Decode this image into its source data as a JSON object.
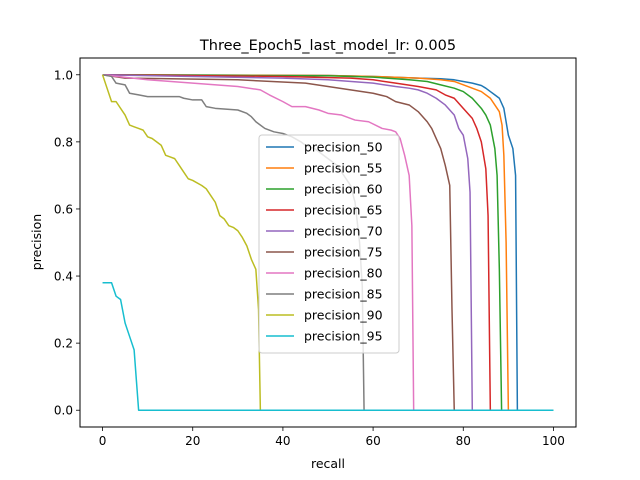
{
  "chart_data": {
    "type": "line",
    "title": "Three_Epoch5_last_model_lr: 0.005",
    "xlabel": "recall",
    "ylabel": "precision",
    "xlim": [
      -5,
      105
    ],
    "ylim": [
      -0.05,
      1.05
    ],
    "xticks": [
      0,
      20,
      40,
      60,
      80,
      100
    ],
    "yticks": [
      0.0,
      0.2,
      0.4,
      0.6,
      0.8,
      1.0
    ],
    "xtick_labels": [
      "0",
      "20",
      "40",
      "60",
      "80",
      "100"
    ],
    "ytick_labels": [
      "0.0",
      "0.2",
      "0.4",
      "0.6",
      "0.8",
      "1.0"
    ],
    "grid": false,
    "legend_position": "center",
    "series": [
      {
        "name": "precision_50",
        "color": "#1f77b4",
        "points": [
          [
            0,
            1.0
          ],
          [
            50,
            0.998
          ],
          [
            60,
            0.995
          ],
          [
            70,
            0.99
          ],
          [
            75,
            0.988
          ],
          [
            78,
            0.985
          ],
          [
            80,
            0.98
          ],
          [
            82,
            0.975
          ],
          [
            84,
            0.968
          ],
          [
            85,
            0.96
          ],
          [
            86,
            0.95
          ],
          [
            87,
            0.94
          ],
          [
            88,
            0.93
          ],
          [
            89,
            0.9
          ],
          [
            90,
            0.82
          ],
          [
            91,
            0.78
          ],
          [
            91.6,
            0.7
          ],
          [
            92,
            0.0
          ],
          [
            100,
            0.0
          ]
        ]
      },
      {
        "name": "precision_55",
        "color": "#ff7f0e",
        "points": [
          [
            0,
            1.0
          ],
          [
            50,
            0.998
          ],
          [
            60,
            0.995
          ],
          [
            70,
            0.99
          ],
          [
            75,
            0.985
          ],
          [
            78,
            0.98
          ],
          [
            80,
            0.97
          ],
          [
            82,
            0.96
          ],
          [
            84,
            0.95
          ],
          [
            86,
            0.93
          ],
          [
            87,
            0.91
          ],
          [
            88,
            0.89
          ],
          [
            88.6,
            0.85
          ],
          [
            89,
            0.76
          ],
          [
            89.5,
            0.5
          ],
          [
            90,
            0.0
          ],
          [
            100,
            0.0
          ]
        ]
      },
      {
        "name": "precision_60",
        "color": "#2ca02c",
        "points": [
          [
            0,
            1.0
          ],
          [
            50,
            0.997
          ],
          [
            60,
            0.993
          ],
          [
            68,
            0.985
          ],
          [
            72,
            0.98
          ],
          [
            75,
            0.97
          ],
          [
            78,
            0.96
          ],
          [
            80,
            0.95
          ],
          [
            82,
            0.93
          ],
          [
            84,
            0.9
          ],
          [
            85,
            0.88
          ],
          [
            86,
            0.85
          ],
          [
            87,
            0.78
          ],
          [
            87.5,
            0.7
          ],
          [
            88,
            0.42
          ],
          [
            88.5,
            0.0
          ],
          [
            100,
            0.0
          ]
        ]
      },
      {
        "name": "precision_65",
        "color": "#d62728",
        "points": [
          [
            0,
            1.0
          ],
          [
            40,
            0.995
          ],
          [
            55,
            0.99
          ],
          [
            60,
            0.985
          ],
          [
            65,
            0.975
          ],
          [
            70,
            0.965
          ],
          [
            74,
            0.955
          ],
          [
            76,
            0.94
          ],
          [
            78,
            0.93
          ],
          [
            80,
            0.9
          ],
          [
            82,
            0.87
          ],
          [
            83,
            0.84
          ],
          [
            84,
            0.8
          ],
          [
            85,
            0.72
          ],
          [
            85.5,
            0.58
          ],
          [
            86,
            0.0
          ],
          [
            100,
            0.0
          ]
        ]
      },
      {
        "name": "precision_70",
        "color": "#9467bd",
        "points": [
          [
            0,
            1.0
          ],
          [
            40,
            0.99
          ],
          [
            50,
            0.985
          ],
          [
            60,
            0.975
          ],
          [
            65,
            0.965
          ],
          [
            68,
            0.96
          ],
          [
            70,
            0.955
          ],
          [
            72,
            0.945
          ],
          [
            74,
            0.93
          ],
          [
            76,
            0.91
          ],
          [
            78,
            0.88
          ],
          [
            79,
            0.84
          ],
          [
            80,
            0.82
          ],
          [
            81,
            0.75
          ],
          [
            81.5,
            0.65
          ],
          [
            82,
            0.0
          ],
          [
            100,
            0.0
          ]
        ]
      },
      {
        "name": "precision_75",
        "color": "#8c564b",
        "points": [
          [
            0,
            1.0
          ],
          [
            5,
            0.99
          ],
          [
            30,
            0.985
          ],
          [
            45,
            0.975
          ],
          [
            50,
            0.965
          ],
          [
            55,
            0.955
          ],
          [
            60,
            0.945
          ],
          [
            63,
            0.935
          ],
          [
            65,
            0.92
          ],
          [
            68,
            0.91
          ],
          [
            70,
            0.89
          ],
          [
            72,
            0.86
          ],
          [
            73,
            0.84
          ],
          [
            74,
            0.81
          ],
          [
            75,
            0.78
          ],
          [
            76,
            0.73
          ],
          [
            77,
            0.67
          ],
          [
            77.5,
            0.3
          ],
          [
            78,
            0.0
          ],
          [
            100,
            0.0
          ]
        ]
      },
      {
        "name": "precision_80",
        "color": "#e377c2",
        "points": [
          [
            0,
            1.0
          ],
          [
            10,
            0.985
          ],
          [
            20,
            0.975
          ],
          [
            30,
            0.965
          ],
          [
            35,
            0.955
          ],
          [
            37,
            0.94
          ],
          [
            40,
            0.92
          ],
          [
            42,
            0.905
          ],
          [
            45,
            0.905
          ],
          [
            48,
            0.895
          ],
          [
            50,
            0.885
          ],
          [
            53,
            0.88
          ],
          [
            56,
            0.865
          ],
          [
            59,
            0.86
          ],
          [
            62,
            0.84
          ],
          [
            64,
            0.835
          ],
          [
            65,
            0.83
          ],
          [
            66,
            0.81
          ],
          [
            67,
            0.76
          ],
          [
            68,
            0.7
          ],
          [
            68.6,
            0.55
          ],
          [
            69,
            0.0
          ],
          [
            100,
            0.0
          ]
        ]
      },
      {
        "name": "precision_85",
        "color": "#7f7f7f",
        "points": [
          [
            0,
            1.0
          ],
          [
            2,
            0.995
          ],
          [
            3,
            0.975
          ],
          [
            5,
            0.97
          ],
          [
            6,
            0.945
          ],
          [
            8,
            0.94
          ],
          [
            10,
            0.935
          ],
          [
            17,
            0.935
          ],
          [
            18,
            0.93
          ],
          [
            20,
            0.925
          ],
          [
            22,
            0.925
          ],
          [
            23,
            0.905
          ],
          [
            25,
            0.9
          ],
          [
            30,
            0.895
          ],
          [
            32,
            0.885
          ],
          [
            33,
            0.875
          ],
          [
            34,
            0.86
          ],
          [
            36,
            0.84
          ],
          [
            38,
            0.83
          ],
          [
            40,
            0.825
          ],
          [
            42,
            0.815
          ],
          [
            44,
            0.8
          ],
          [
            45,
            0.79
          ],
          [
            47,
            0.78
          ],
          [
            49,
            0.76
          ],
          [
            50,
            0.75
          ],
          [
            52,
            0.73
          ],
          [
            54,
            0.69
          ],
          [
            55,
            0.67
          ],
          [
            56,
            0.62
          ],
          [
            57,
            0.5
          ],
          [
            57.6,
            0.37
          ],
          [
            58,
            0.0
          ],
          [
            100,
            0.0
          ]
        ]
      },
      {
        "name": "precision_90",
        "color": "#bcbd22",
        "points": [
          [
            0,
            1.0
          ],
          [
            1,
            0.96
          ],
          [
            2,
            0.92
          ],
          [
            3,
            0.92
          ],
          [
            5,
            0.88
          ],
          [
            6,
            0.85
          ],
          [
            7,
            0.845
          ],
          [
            8,
            0.84
          ],
          [
            9,
            0.835
          ],
          [
            10,
            0.815
          ],
          [
            11,
            0.81
          ],
          [
            12,
            0.8
          ],
          [
            13,
            0.79
          ],
          [
            14,
            0.76
          ],
          [
            15,
            0.755
          ],
          [
            16,
            0.75
          ],
          [
            17,
            0.73
          ],
          [
            18,
            0.71
          ],
          [
            19,
            0.69
          ],
          [
            20,
            0.685
          ],
          [
            22,
            0.67
          ],
          [
            23,
            0.66
          ],
          [
            24,
            0.64
          ],
          [
            25,
            0.62
          ],
          [
            26,
            0.58
          ],
          [
            27,
            0.57
          ],
          [
            28,
            0.55
          ],
          [
            29,
            0.545
          ],
          [
            30,
            0.535
          ],
          [
            31,
            0.515
          ],
          [
            32,
            0.49
          ],
          [
            33,
            0.45
          ],
          [
            34,
            0.42
          ],
          [
            34.6,
            0.3
          ],
          [
            35,
            0.0
          ],
          [
            100,
            0.0
          ]
        ]
      },
      {
        "name": "precision_95",
        "color": "#17becf",
        "points": [
          [
            0,
            0.38
          ],
          [
            2,
            0.38
          ],
          [
            3,
            0.34
          ],
          [
            4,
            0.33
          ],
          [
            5,
            0.26
          ],
          [
            6,
            0.22
          ],
          [
            7,
            0.18
          ],
          [
            8,
            0.0
          ],
          [
            100,
            0.0
          ]
        ]
      }
    ]
  }
}
